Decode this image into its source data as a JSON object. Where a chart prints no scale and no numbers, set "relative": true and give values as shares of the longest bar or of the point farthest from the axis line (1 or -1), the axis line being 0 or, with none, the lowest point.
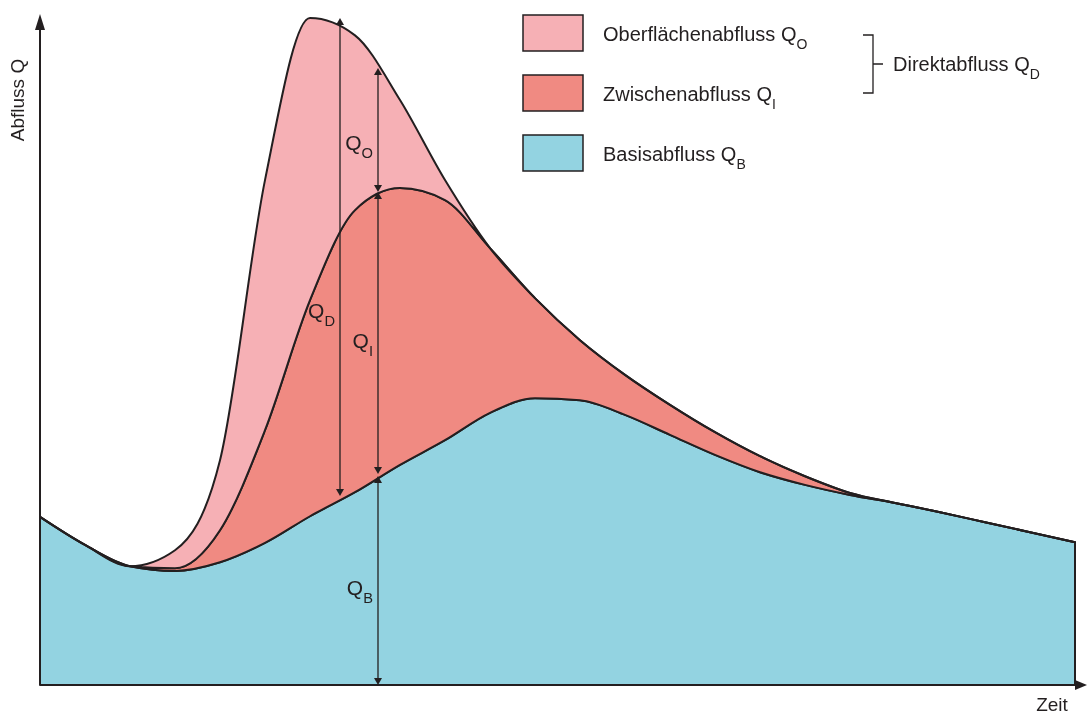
{
  "chart_data": {
    "type": "area",
    "stacked": true,
    "relative": true,
    "xlabel": "Zeit",
    "ylabel": "Abfluss Q",
    "legend": "top right",
    "categories": [
      null,
      null,
      null,
      null,
      null,
      null,
      null,
      null,
      null,
      null,
      null,
      null,
      null,
      null,
      null,
      null,
      null,
      null,
      null,
      null,
      null,
      null,
      null,
      null
    ],
    "series": [
      {
        "name": "Basisabfluss Q$_{B}$",
        "color": "#93d3e1",
        "values": [
          0.252,
          0.21,
          0.178,
          0.171,
          0.184,
          0.213,
          0.253,
          0.289,
          0.33,
          0.367,
          0.408,
          0.43,
          0.427,
          0.405,
          0.375,
          0.345,
          0.319,
          0.3,
          0.285,
          0.273,
          0.259,
          0.244,
          0.229,
          0.214
        ]
      },
      {
        "name": "Zwischenabfluss Q$_{I}$",
        "color": "#f08a82",
        "values": [
          0,
          0,
          0,
          0.004,
          0.048,
          0.169,
          0.324,
          0.423,
          0.415,
          0.36,
          0.247,
          0.15,
          0.09,
          0.06,
          0.045,
          0.034,
          0.024,
          0.013,
          0.003,
          0,
          0,
          0,
          0,
          0
        ]
      },
      {
        "name": "Oberflächenabfluss Q$_{O}$",
        "color": "#f6b0b5",
        "values": [
          0,
          0,
          0,
          0.027,
          0.105,
          0.375,
          0.423,
          0.262,
          0.132,
          0.03,
          0,
          0,
          0,
          0,
          0,
          0,
          0,
          0,
          0,
          0,
          0,
          0,
          0,
          0
        ]
      }
    ],
    "annotations": [
      "Q$_{O}$",
      "Q$_{D}$",
      "Q$_{I}$",
      "Q$_{B}$",
      "Direktabfluss Q$_{D}$"
    ]
  }
}
